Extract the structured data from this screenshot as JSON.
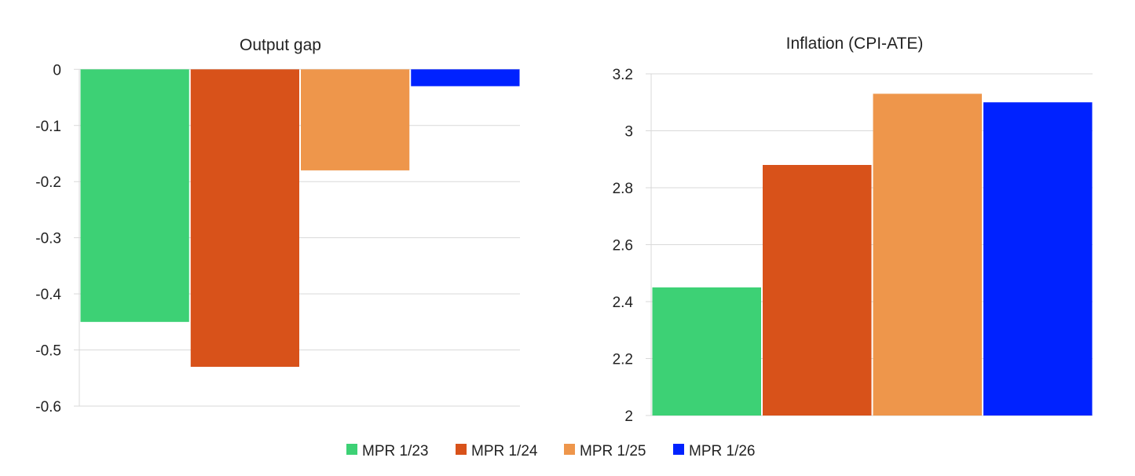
{
  "chart_data": [
    {
      "type": "bar",
      "title": "Output gap",
      "categories": [
        "MPR 1/23",
        "MPR 1/24",
        "MPR 1/25",
        "MPR 1/26"
      ],
      "values": [
        -0.45,
        -0.53,
        -0.18,
        -0.03
      ],
      "ylim": [
        -0.6,
        0
      ],
      "yticks": [
        0,
        -0.1,
        -0.2,
        -0.3,
        -0.4,
        -0.5,
        -0.6
      ],
      "ytick_labels": [
        "0",
        "-0.1",
        "-0.2",
        "-0.3",
        "-0.4",
        "-0.5",
        "-0.6"
      ],
      "grid": true
    },
    {
      "type": "bar",
      "title": "Inflation (CPI-ATE)",
      "categories": [
        "MPR 1/23",
        "MPR 1/24",
        "MPR 1/25",
        "MPR 1/26"
      ],
      "values": [
        2.45,
        2.88,
        3.13,
        3.1
      ],
      "ylim": [
        2,
        3.2
      ],
      "yticks": [
        3.2,
        3,
        2.8,
        2.6,
        2.4,
        2.2,
        2
      ],
      "ytick_labels": [
        "3.2",
        "3",
        "2.8",
        "2.6",
        "2.4",
        "2.2",
        "2"
      ],
      "grid": true
    }
  ],
  "legend": {
    "placement": "bottom",
    "items": [
      {
        "label": "MPR 1/23",
        "color": "#3dd175"
      },
      {
        "label": "MPR 1/24",
        "color": "#d8521a"
      },
      {
        "label": "MPR 1/25",
        "color": "#ee964b"
      },
      {
        "label": "MPR 1/26",
        "color": "#0022ff"
      }
    ]
  }
}
